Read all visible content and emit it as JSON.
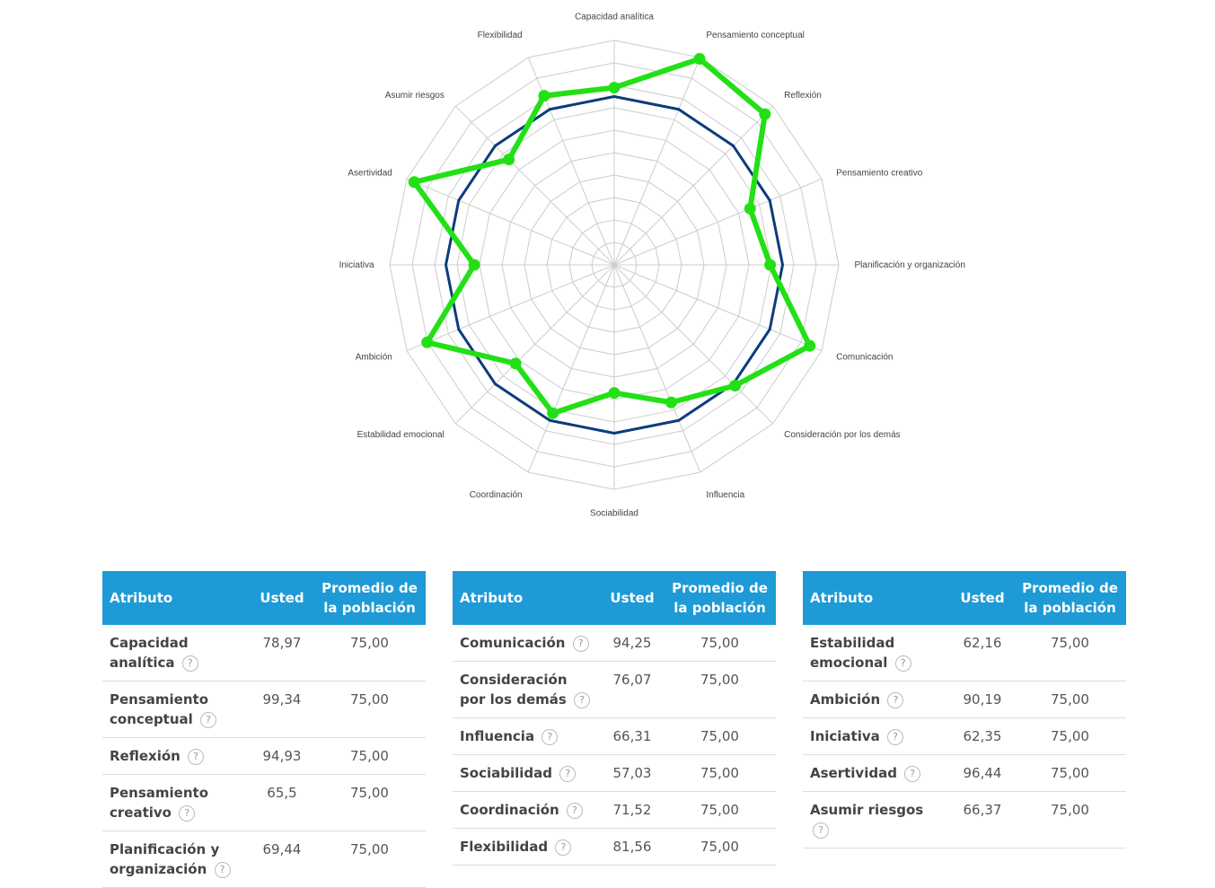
{
  "chart_data": {
    "type": "radar",
    "axes": [
      "Capacidad analítica",
      "Pensamiento conceptual",
      "Reflexión",
      "Pensamiento creativo",
      "Planificación y organización",
      "Comunicación",
      "Consideración por los demás",
      "Influencia",
      "Sociabilidad",
      "Coordinación",
      "Estabilidad emocional",
      "Ambición",
      "Iniciativa",
      "Asertividad",
      "Asumir riesgos",
      "Flexibilidad"
    ],
    "series": [
      {
        "values": [
          75,
          75,
          75,
          75,
          75,
          75,
          75,
          75,
          75,
          75,
          75,
          75,
          75,
          75,
          75,
          75
        ],
        "color": "#0b3c7d"
      },
      {
        "values": [
          78.97,
          99.34,
          94.93,
          65.5,
          69.44,
          94.25,
          76.07,
          66.31,
          57.03,
          71.52,
          62.16,
          90.19,
          62.35,
          96.44,
          66.37,
          81.56
        ],
        "color": "#22e016"
      }
    ],
    "rlim": [
      0,
      100
    ],
    "rings": 10,
    "grid": true
  },
  "tables": [
    {
      "headers": [
        "Atributo",
        "Usted",
        "Promedio de la población"
      ],
      "rows": [
        {
          "attr": "Capacidad analítica",
          "usted": "78,97",
          "prom": "75,00"
        },
        {
          "attr": "Pensamiento conceptual",
          "usted": "99,34",
          "prom": "75,00"
        },
        {
          "attr": "Reflexión",
          "usted": "94,93",
          "prom": "75,00"
        },
        {
          "attr": "Pensamiento creativo",
          "usted": "65,5",
          "prom": "75,00"
        },
        {
          "attr": "Planificación y organización",
          "usted": "69,44",
          "prom": "75,00"
        }
      ]
    },
    {
      "headers": [
        "Atributo",
        "Usted",
        "Promedio de la población"
      ],
      "rows": [
        {
          "attr": "Comunicación",
          "usted": "94,25",
          "prom": "75,00"
        },
        {
          "attr": "Consideración por los demás",
          "usted": "76,07",
          "prom": "75,00"
        },
        {
          "attr": "Influencia",
          "usted": "66,31",
          "prom": "75,00"
        },
        {
          "attr": "Sociabilidad",
          "usted": "57,03",
          "prom": "75,00"
        },
        {
          "attr": "Coordinación",
          "usted": "71,52",
          "prom": "75,00"
        },
        {
          "attr": "Flexibilidad",
          "usted": "81,56",
          "prom": "75,00"
        }
      ]
    },
    {
      "headers": [
        "Atributo",
        "Usted",
        "Promedio de la población"
      ],
      "rows": [
        {
          "attr": "Estabilidad emocional",
          "usted": "62,16",
          "prom": "75,00"
        },
        {
          "attr": "Ambición",
          "usted": "90,19",
          "prom": "75,00"
        },
        {
          "attr": "Iniciativa",
          "usted": "62,35",
          "prom": "75,00"
        },
        {
          "attr": "Asertividad",
          "usted": "96,44",
          "prom": "75,00"
        },
        {
          "attr": "Asumir riesgos",
          "usted": "66,37",
          "prom": "75,00"
        }
      ]
    }
  ],
  "help_glyph": "?"
}
